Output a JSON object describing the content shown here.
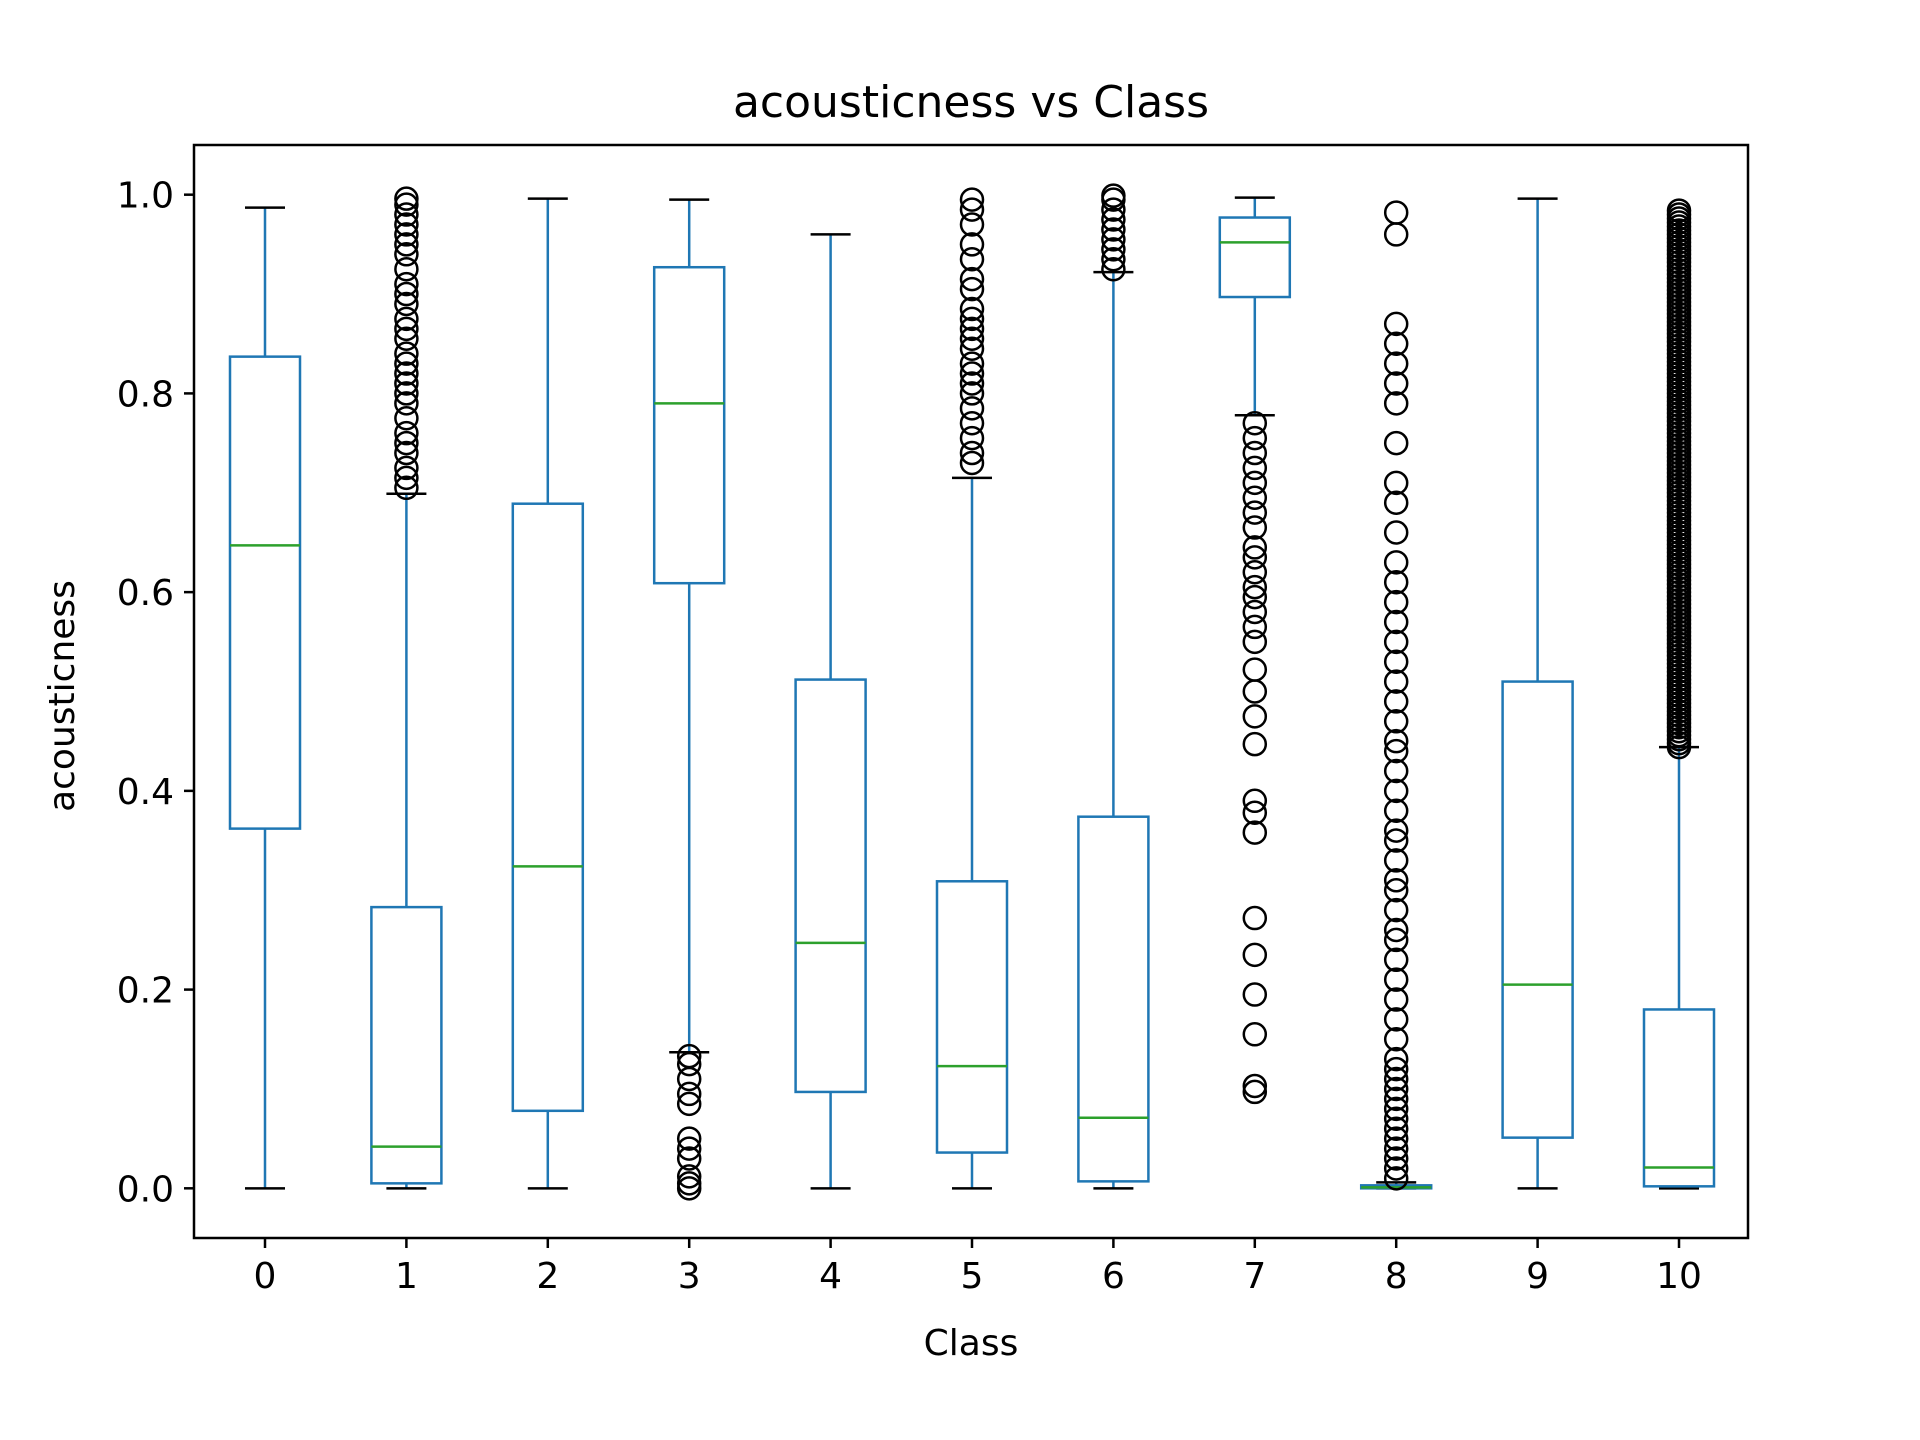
{
  "chart_data": {
    "type": "box",
    "title": "acousticness vs Class",
    "xlabel": "Class",
    "ylabel": "acousticness",
    "categories": [
      "0",
      "1",
      "2",
      "3",
      "4",
      "5",
      "6",
      "7",
      "8",
      "9",
      "10"
    ],
    "ylim": [
      -0.05,
      1.05
    ],
    "yticks": [
      0.0,
      0.2,
      0.4,
      0.6,
      0.8,
      1.0
    ],
    "ytick_labels": [
      "0.0",
      "0.2",
      "0.4",
      "0.6",
      "0.8",
      "1.0"
    ],
    "grid": false,
    "colors": {
      "box": "#1f77b4",
      "median": "#2ca02c",
      "caps": "#000000",
      "outlier": "#000000"
    },
    "boxes": [
      {
        "category": "0",
        "whislo": 0.0,
        "q1": 0.362,
        "median": 0.647,
        "q3": 0.837,
        "whishi": 0.987,
        "fliers": []
      },
      {
        "category": "1",
        "whislo": 0.0,
        "q1": 0.005,
        "median": 0.042,
        "q3": 0.283,
        "whishi": 0.699,
        "fliers": [
          0.705,
          0.715,
          0.725,
          0.74,
          0.75,
          0.76,
          0.775,
          0.79,
          0.8,
          0.81,
          0.82,
          0.83,
          0.84,
          0.855,
          0.865,
          0.875,
          0.89,
          0.9,
          0.91,
          0.925,
          0.94,
          0.95,
          0.96,
          0.97,
          0.98,
          0.99,
          0.996
        ]
      },
      {
        "category": "2",
        "whislo": 0.0,
        "q1": 0.078,
        "median": 0.324,
        "q3": 0.689,
        "whishi": 0.996,
        "fliers": []
      },
      {
        "category": "3",
        "whislo": 0.137,
        "q1": 0.609,
        "median": 0.79,
        "q3": 0.927,
        "whishi": 0.995,
        "fliers": [
          0.0,
          0.005,
          0.012,
          0.03,
          0.04,
          0.05,
          0.085,
          0.095,
          0.11,
          0.125,
          0.133
        ]
      },
      {
        "category": "4",
        "whislo": 0.0,
        "q1": 0.097,
        "median": 0.247,
        "q3": 0.512,
        "whishi": 0.96,
        "fliers": []
      },
      {
        "category": "5",
        "whislo": 0.0,
        "q1": 0.036,
        "median": 0.123,
        "q3": 0.309,
        "whishi": 0.715,
        "fliers": [
          0.73,
          0.74,
          0.755,
          0.77,
          0.785,
          0.8,
          0.81,
          0.82,
          0.83,
          0.845,
          0.855,
          0.865,
          0.875,
          0.885,
          0.905,
          0.915,
          0.935,
          0.95,
          0.97,
          0.985,
          0.995
        ]
      },
      {
        "category": "6",
        "whislo": 0.0,
        "q1": 0.007,
        "median": 0.071,
        "q3": 0.374,
        "whishi": 0.922,
        "fliers": [
          0.925,
          0.935,
          0.945,
          0.955,
          0.965,
          0.975,
          0.985,
          0.995,
          0.999
        ]
      },
      {
        "category": "7",
        "whislo": 0.778,
        "q1": 0.897,
        "median": 0.952,
        "q3": 0.977,
        "whishi": 0.997,
        "fliers": [
          0.097,
          0.103,
          0.155,
          0.195,
          0.235,
          0.272,
          0.358,
          0.378,
          0.39,
          0.447,
          0.475,
          0.5,
          0.522,
          0.55,
          0.565,
          0.58,
          0.595,
          0.605,
          0.62,
          0.635,
          0.645,
          0.665,
          0.68,
          0.695,
          0.71,
          0.725,
          0.74,
          0.755,
          0.77
        ]
      },
      {
        "category": "8",
        "whislo": 0.0,
        "q1": 0.0,
        "median": 0.001,
        "q3": 0.003,
        "whishi": 0.006,
        "fliers": [
          0.01,
          0.02,
          0.03,
          0.04,
          0.05,
          0.06,
          0.07,
          0.08,
          0.09,
          0.1,
          0.11,
          0.12,
          0.13,
          0.15,
          0.17,
          0.19,
          0.21,
          0.23,
          0.25,
          0.26,
          0.28,
          0.3,
          0.31,
          0.33,
          0.35,
          0.36,
          0.38,
          0.4,
          0.42,
          0.44,
          0.45,
          0.47,
          0.49,
          0.51,
          0.53,
          0.55,
          0.57,
          0.59,
          0.61,
          0.63,
          0.66,
          0.69,
          0.71,
          0.75,
          0.79,
          0.81,
          0.83,
          0.85,
          0.87,
          0.96,
          0.982
        ]
      },
      {
        "category": "9",
        "whislo": 0.0,
        "q1": 0.051,
        "median": 0.205,
        "q3": 0.51,
        "whishi": 0.996,
        "fliers": []
      },
      {
        "category": "10",
        "whislo": 0.0,
        "q1": 0.002,
        "median": 0.021,
        "q3": 0.18,
        "whishi": 0.444,
        "fliers_range": [
          0.444,
          0.985
        ]
      }
    ]
  }
}
